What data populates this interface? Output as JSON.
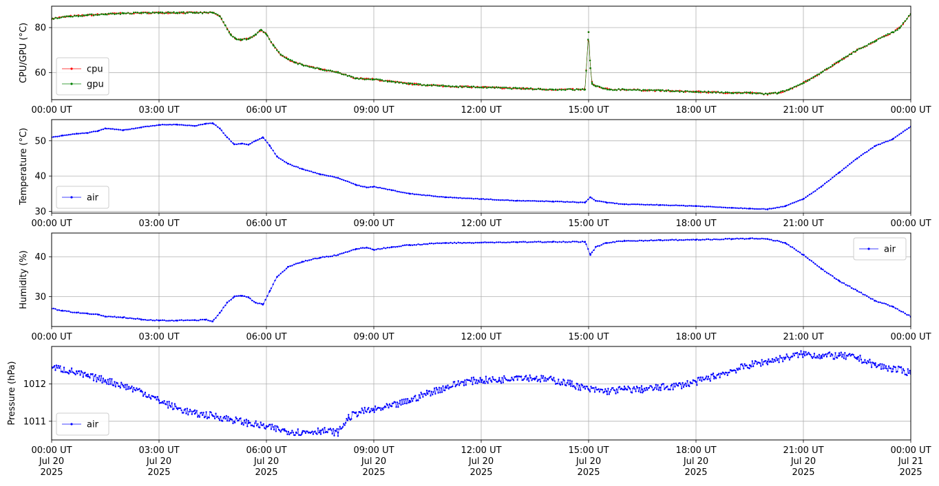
{
  "chart_data": [
    {
      "type": "line",
      "title": "",
      "xlabel": "",
      "ylabel": "CPU/GPU (°C)",
      "xlim": [
        0,
        24
      ],
      "ylim": [
        48,
        89.5
      ],
      "yticks": [
        60,
        80
      ],
      "grid": true,
      "legend": "lower-left",
      "x_tick_labels": [
        "00:00 UT",
        "03:00 UT",
        "06:00 UT",
        "09:00 UT",
        "12:00 UT",
        "15:00 UT",
        "18:00 UT",
        "21:00 UT",
        "00:00 UT"
      ],
      "series": [
        {
          "name": "cpu",
          "color": "#ff0000",
          "x": [
            0,
            0.5,
            1,
            1.5,
            2,
            2.5,
            3,
            3.5,
            4,
            4.5,
            4.7,
            4.85,
            5,
            5.15,
            5.3,
            5.5,
            5.7,
            5.85,
            6,
            6.2,
            6.4,
            6.6,
            6.8,
            7,
            7.5,
            8,
            8.5,
            9,
            9.5,
            10,
            10.5,
            11,
            12,
            13,
            14,
            14.9,
            15.0,
            15.05,
            15.1,
            15.2,
            15.4,
            15.6,
            16,
            17,
            18,
            19,
            19.5,
            20,
            20.3,
            20.6,
            21,
            21.5,
            22,
            22.5,
            23,
            23.5,
            23.7,
            24
          ],
          "y": [
            84,
            85,
            85.5,
            86,
            86.3,
            86.5,
            86.6,
            86.6,
            86.6,
            86.6,
            85,
            81,
            77,
            75,
            74.5,
            75,
            77,
            79,
            77,
            72,
            68,
            66,
            64.5,
            63.5,
            61.5,
            60,
            57.5,
            57,
            56,
            55,
            54.5,
            54,
            53.5,
            53,
            52.5,
            52.5,
            78,
            62,
            55,
            54,
            53,
            52.5,
            52.5,
            52,
            51.5,
            51,
            51,
            50.5,
            51,
            52.5,
            55.5,
            60,
            65,
            70,
            74,
            78,
            80,
            86
          ]
        },
        {
          "name": "gpu",
          "color": "#008000",
          "x": [
            0,
            0.5,
            1,
            1.5,
            2,
            2.5,
            3,
            3.5,
            4,
            4.5,
            4.7,
            4.85,
            5,
            5.15,
            5.3,
            5.5,
            5.7,
            5.85,
            6,
            6.2,
            6.4,
            6.6,
            6.8,
            7,
            7.5,
            8,
            8.5,
            9,
            9.5,
            10,
            10.5,
            11,
            12,
            13,
            14,
            14.9,
            15.0,
            15.05,
            15.1,
            15.2,
            15.4,
            15.6,
            16,
            17,
            18,
            19,
            19.5,
            20,
            20.3,
            20.6,
            21,
            21.5,
            22,
            22.5,
            23,
            23.5,
            23.7,
            24
          ],
          "y": [
            84,
            85,
            85.5,
            86,
            86.3,
            86.5,
            86.6,
            86.6,
            86.6,
            86.6,
            85,
            81,
            77,
            75,
            74.5,
            75,
            77,
            79,
            77,
            72,
            68,
            66,
            64.5,
            63.5,
            61.5,
            60,
            57.5,
            57,
            56,
            55,
            54.5,
            54,
            53.5,
            53,
            52.5,
            52.5,
            78,
            62,
            55,
            54,
            53,
            52.5,
            52.5,
            52,
            51.5,
            51,
            51,
            50.5,
            51,
            52.5,
            55.5,
            60,
            65,
            70,
            74,
            78,
            80,
            86
          ]
        }
      ]
    },
    {
      "type": "line",
      "title": "",
      "xlabel": "",
      "ylabel": "Temperature (°C)",
      "xlim": [
        0,
        24
      ],
      "ylim": [
        29.5,
        56
      ],
      "yticks": [
        30,
        40,
        50
      ],
      "grid": true,
      "legend": "lower-left",
      "x_tick_labels": [
        "00:00 UT",
        "03:00 UT",
        "06:00 UT",
        "09:00 UT",
        "12:00 UT",
        "15:00 UT",
        "18:00 UT",
        "21:00 UT",
        "00:00 UT"
      ],
      "series": [
        {
          "name": "air",
          "color": "#0000ff",
          "x": [
            0,
            0.3,
            0.7,
            1,
            1.3,
            1.5,
            2,
            2.5,
            3,
            3.5,
            4,
            4.3,
            4.5,
            4.7,
            4.9,
            5.1,
            5.3,
            5.5,
            5.7,
            5.9,
            6.1,
            6.3,
            6.6,
            7,
            7.5,
            8,
            8.5,
            8.8,
            9,
            9.5,
            10,
            11,
            12,
            13,
            14,
            14.9,
            15.05,
            15.2,
            15.5,
            16,
            17,
            18,
            19,
            19.5,
            20,
            20.5,
            21,
            21.5,
            22,
            22.5,
            23,
            23.5,
            24
          ],
          "y": [
            51,
            51.5,
            52,
            52.2,
            52.8,
            53.5,
            53,
            53.8,
            54.5,
            54.6,
            54.2,
            54.8,
            55,
            53.5,
            51,
            49,
            49.2,
            48.9,
            50,
            51,
            48.5,
            45.5,
            43.5,
            42,
            40.5,
            39.5,
            37.5,
            36.8,
            37,
            36,
            35,
            34,
            33.5,
            33,
            32.8,
            32.5,
            34,
            33,
            32.5,
            32,
            31.8,
            31.5,
            31,
            30.8,
            30.6,
            31.5,
            33.5,
            37,
            41,
            45,
            48.5,
            50.5,
            54
          ]
        }
      ]
    },
    {
      "type": "line",
      "title": "",
      "xlabel": "",
      "ylabel": "Humidity (%)",
      "xlim": [
        0,
        24
      ],
      "ylim": [
        22.5,
        46
      ],
      "yticks": [
        30,
        40
      ],
      "grid": true,
      "legend": "upper-right",
      "x_tick_labels": [
        "00:00 UT",
        "03:00 UT",
        "06:00 UT",
        "09:00 UT",
        "12:00 UT",
        "15:00 UT",
        "18:00 UT",
        "21:00 UT",
        "00:00 UT"
      ],
      "series": [
        {
          "name": "air",
          "color": "#0000ff",
          "x": [
            0,
            0.3,
            0.7,
            1,
            1.3,
            1.5,
            2,
            2.5,
            3,
            3.5,
            4,
            4.3,
            4.5,
            4.7,
            4.9,
            5.1,
            5.3,
            5.5,
            5.7,
            5.9,
            6.1,
            6.3,
            6.6,
            7,
            7.5,
            8,
            8.5,
            8.8,
            9,
            9.5,
            10,
            11,
            12,
            13,
            14,
            14.9,
            15.05,
            15.2,
            15.5,
            16,
            17,
            18,
            19,
            19.5,
            20,
            20.5,
            21,
            21.5,
            22,
            22.5,
            23,
            23.5,
            24
          ],
          "y": [
            27,
            26.5,
            26,
            25.8,
            25.5,
            25,
            24.8,
            24.3,
            24,
            24,
            24.1,
            24.2,
            23.8,
            26,
            28.5,
            30,
            30.2,
            29.8,
            28.5,
            28,
            31.5,
            35,
            37.5,
            38.8,
            39.8,
            40.5,
            42,
            42.3,
            41.8,
            42.5,
            43,
            43.5,
            43.6,
            43.7,
            43.8,
            43.8,
            40.5,
            42.5,
            43.5,
            44,
            44.2,
            44.3,
            44.5,
            44.6,
            44.5,
            43.5,
            40.5,
            37,
            34,
            31.5,
            29,
            27.5,
            25
          ]
        }
      ]
    },
    {
      "type": "line",
      "title": "",
      "xlabel": "",
      "ylabel": "Pressure (hPa)",
      "xlim": [
        0,
        24
      ],
      "ylim": [
        1010.5,
        1013
      ],
      "yticks": [
        1011,
        1012
      ],
      "grid": true,
      "legend": "lower-left",
      "x_tick_labels": [
        "00:00 UT\nJul 20\n2025",
        "03:00 UT\nJul 20\n2025",
        "06:00 UT\nJul 20\n2025",
        "09:00 UT\nJul 20\n2025",
        "12:00 UT\nJul 20\n2025",
        "15:00 UT\nJul 20\n2025",
        "18:00 UT\nJul 20\n2025",
        "21:00 UT\nJul 20\n2025",
        "00:00 UT\nJul 21\n2025"
      ],
      "series": [
        {
          "name": "air",
          "color": "#0000ff",
          "x": [
            0,
            0.5,
            1,
            1.5,
            2,
            2.5,
            3,
            3.5,
            4,
            4.5,
            5,
            5.5,
            6,
            6.5,
            7,
            7.5,
            8,
            8.3,
            8.6,
            9,
            9.5,
            10,
            10.5,
            11,
            11.5,
            12,
            12.5,
            13,
            13.5,
            14,
            14.5,
            15,
            15.5,
            16,
            16.5,
            17,
            17.5,
            18,
            18.5,
            19,
            19.5,
            20,
            20.5,
            21,
            21.5,
            22,
            22.5,
            23,
            23.5,
            24
          ],
          "y": [
            1012.45,
            1012.35,
            1012.2,
            1012.1,
            1011.95,
            1011.8,
            1011.55,
            1011.35,
            1011.2,
            1011.15,
            1011.05,
            1010.95,
            1010.85,
            1010.75,
            1010.7,
            1010.75,
            1010.7,
            1011.1,
            1011.25,
            1011.3,
            1011.4,
            1011.55,
            1011.75,
            1011.9,
            1012.05,
            1012.1,
            1012.1,
            1012.2,
            1012.15,
            1012.1,
            1012.0,
            1011.85,
            1011.8,
            1011.85,
            1011.85,
            1011.9,
            1011.95,
            1012.05,
            1012.2,
            1012.35,
            1012.5,
            1012.6,
            1012.7,
            1012.8,
            1012.75,
            1012.75,
            1012.7,
            1012.5,
            1012.4,
            1012.3
          ]
        }
      ]
    }
  ]
}
